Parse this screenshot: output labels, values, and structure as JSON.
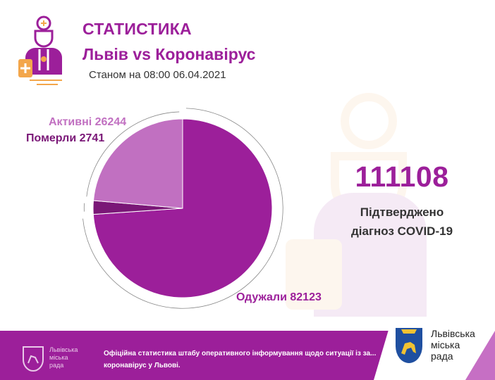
{
  "header": {
    "title": "СТАТИСТИКА",
    "subtitle": "Львів vs Коронавірус",
    "date": "Станом на 08:00 06.04.2021"
  },
  "summary": {
    "confirmed_value": "111108",
    "confirmed_caption_line1": "Підтверджено",
    "confirmed_caption_line2": "діагноз COVID-19"
  },
  "footer": {
    "org_name_lines": [
      "Львівська",
      "міська",
      "рада"
    ],
    "text": "Офіційна статистика штабу оперативного інформування щодо ситуації із за... коронавірус у Львові.",
    "card_org_lines": [
      "Львівська",
      "міська",
      "рада"
    ]
  },
  "colors": {
    "brand_purple": "#9c1f9a",
    "active_slice": "#c170c1",
    "deaths_slice": "#7a1777",
    "recovered_slice": "#9c1f9a",
    "accent_orange": "#f3a64b"
  },
  "chart_data": {
    "type": "pie",
    "title": "",
    "start_angle_deg": 0,
    "direction": "clockwise",
    "slices": [
      {
        "label": "Одужали",
        "value": 82123,
        "display": "Одужали 82123",
        "color": "#9c1f9a",
        "label_color": "#9c1f9a"
      },
      {
        "label": "Померли",
        "value": 2741,
        "display": "Померли 2741",
        "color": "#7a1777",
        "label_color": "#7a1777"
      },
      {
        "label": "Активні",
        "value": 26244,
        "display": "Активні 26244",
        "color": "#c170c1",
        "label_color": "#c170c1"
      }
    ],
    "total": 111108
  }
}
